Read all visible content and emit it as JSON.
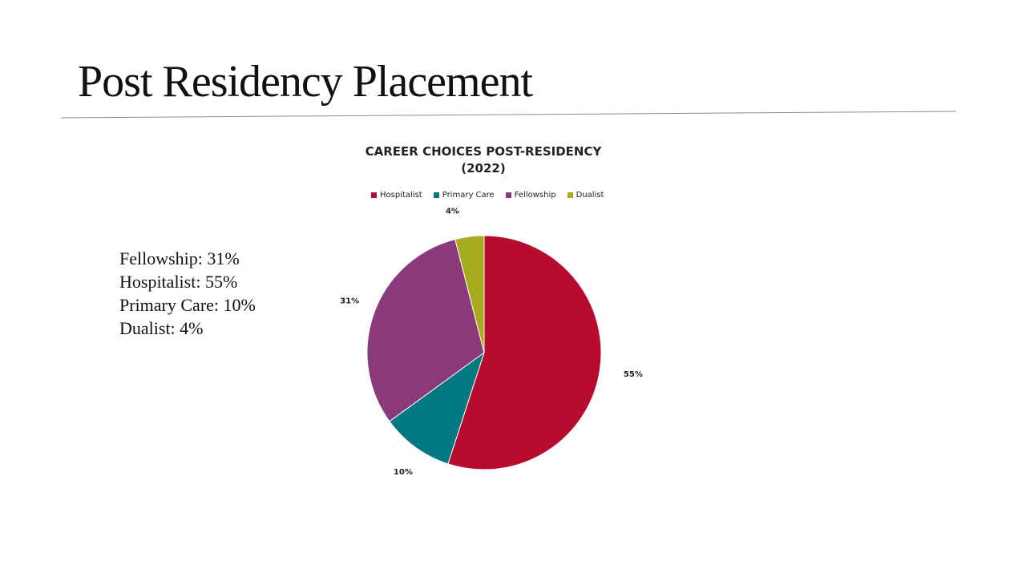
{
  "slide": {
    "title": "Post Residency Placement",
    "stats": [
      "Fellowship: 31%",
      "Hospitalist: 55%",
      "Primary Care: 10%",
      "Dualist: 4%"
    ]
  },
  "chart_data": {
    "type": "pie",
    "title_lines": [
      "CAREER CHOICES POST-RESIDENCY",
      "(2022)"
    ],
    "categories": [
      "Hospitalist",
      "Primary Care",
      "Fellowship",
      "Dualist"
    ],
    "values": [
      55,
      10,
      31,
      4
    ],
    "labels": [
      "55%",
      "10%",
      "31%",
      "4%"
    ],
    "colors": [
      "#b80c2f",
      "#027883",
      "#8a3a7b",
      "#a9ab1e"
    ],
    "legend_position": "top"
  }
}
